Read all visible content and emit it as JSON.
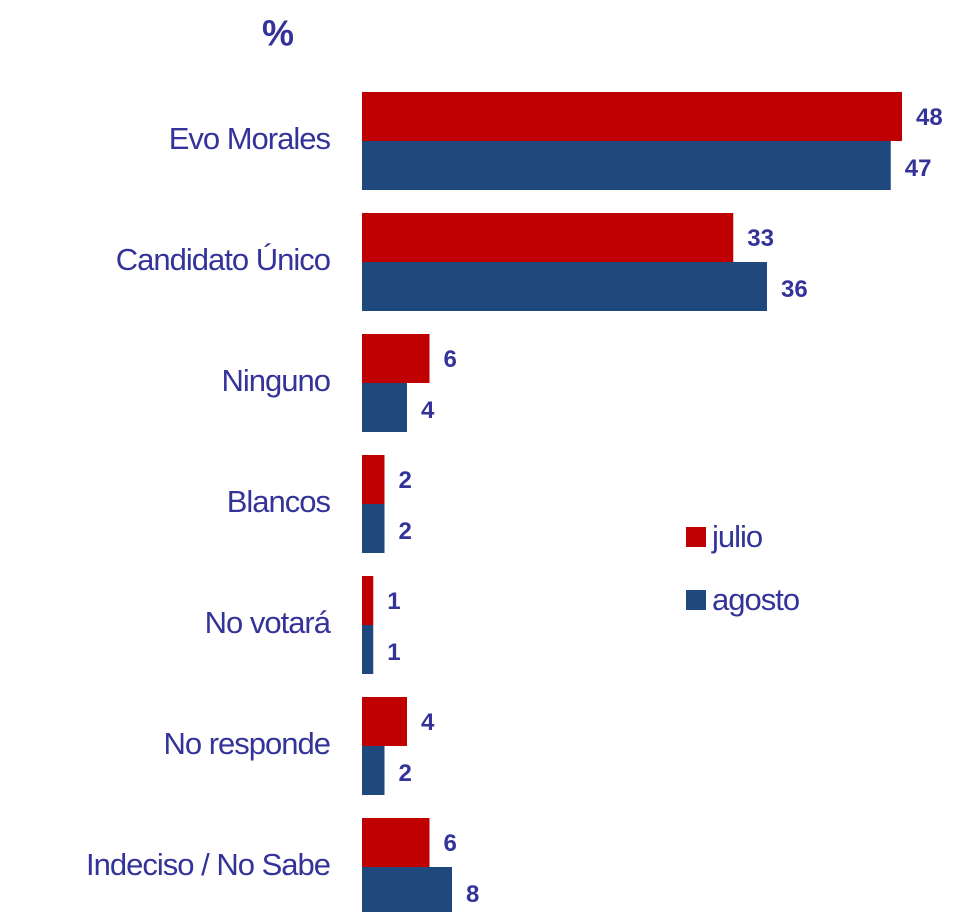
{
  "chart_data": {
    "type": "bar",
    "orientation": "horizontal",
    "title": "%",
    "categories": [
      "Evo Morales",
      "Candidato Único",
      "Ninguno",
      "Blancos",
      "No votará",
      "No responde",
      "Indeciso / No Sabe"
    ],
    "series": [
      {
        "name": "julio",
        "color": "#c00000",
        "values": [
          48,
          33,
          6,
          2,
          1,
          4,
          6
        ]
      },
      {
        "name": "agosto",
        "color": "#1f497d",
        "values": [
          47,
          36,
          4,
          2,
          1,
          2,
          8
        ]
      }
    ],
    "legend": "right"
  }
}
